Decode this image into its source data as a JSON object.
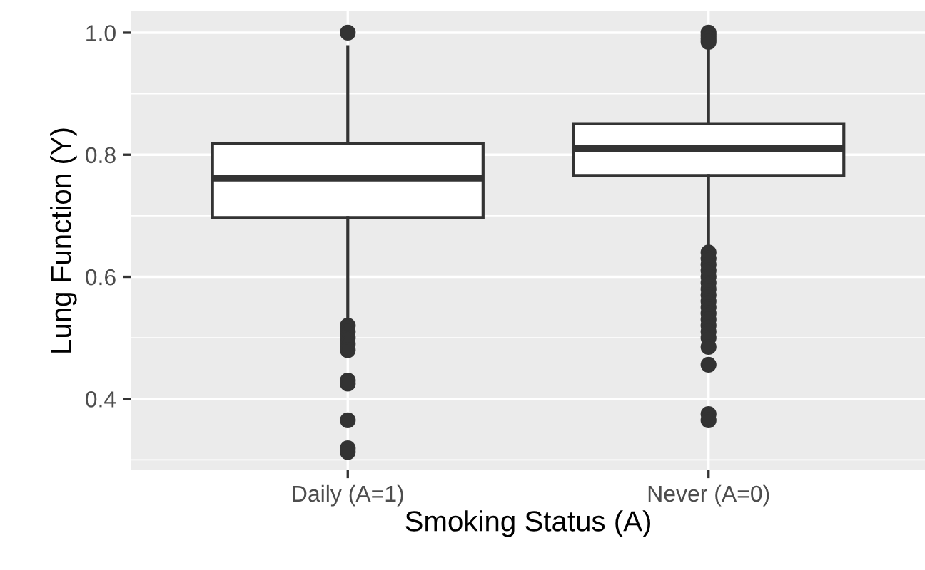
{
  "chart_data": {
    "type": "box",
    "xlabel": "Smoking Status (A)",
    "ylabel": "Lung Function (Y)",
    "categories": [
      "Daily (A=1)",
      "Never (A=0)"
    ],
    "boxes": [
      {
        "low": 0.53,
        "q1": 0.697,
        "median": 0.762,
        "q3": 0.819,
        "high": 0.977,
        "outliers": [
          1.0,
          0.52,
          0.51,
          0.5,
          0.49,
          0.48,
          0.43,
          0.425,
          0.365,
          0.319,
          0.313
        ]
      },
      {
        "low": 0.649,
        "q1": 0.766,
        "median": 0.81,
        "q3": 0.851,
        "high": 0.98,
        "outliers": [
          1.0,
          0.995,
          0.99,
          0.985,
          0.64,
          0.63,
          0.62,
          0.61,
          0.6,
          0.59,
          0.58,
          0.57,
          0.56,
          0.55,
          0.54,
          0.53,
          0.52,
          0.51,
          0.5,
          0.485,
          0.456,
          0.375,
          0.365
        ]
      }
    ],
    "ylim": [
      0.283,
      1.035
    ],
    "yticks": [
      0.4,
      0.6,
      0.8,
      {
        "value": 1,
        "label": "1.0"
      }
    ],
    "grid": true
  }
}
